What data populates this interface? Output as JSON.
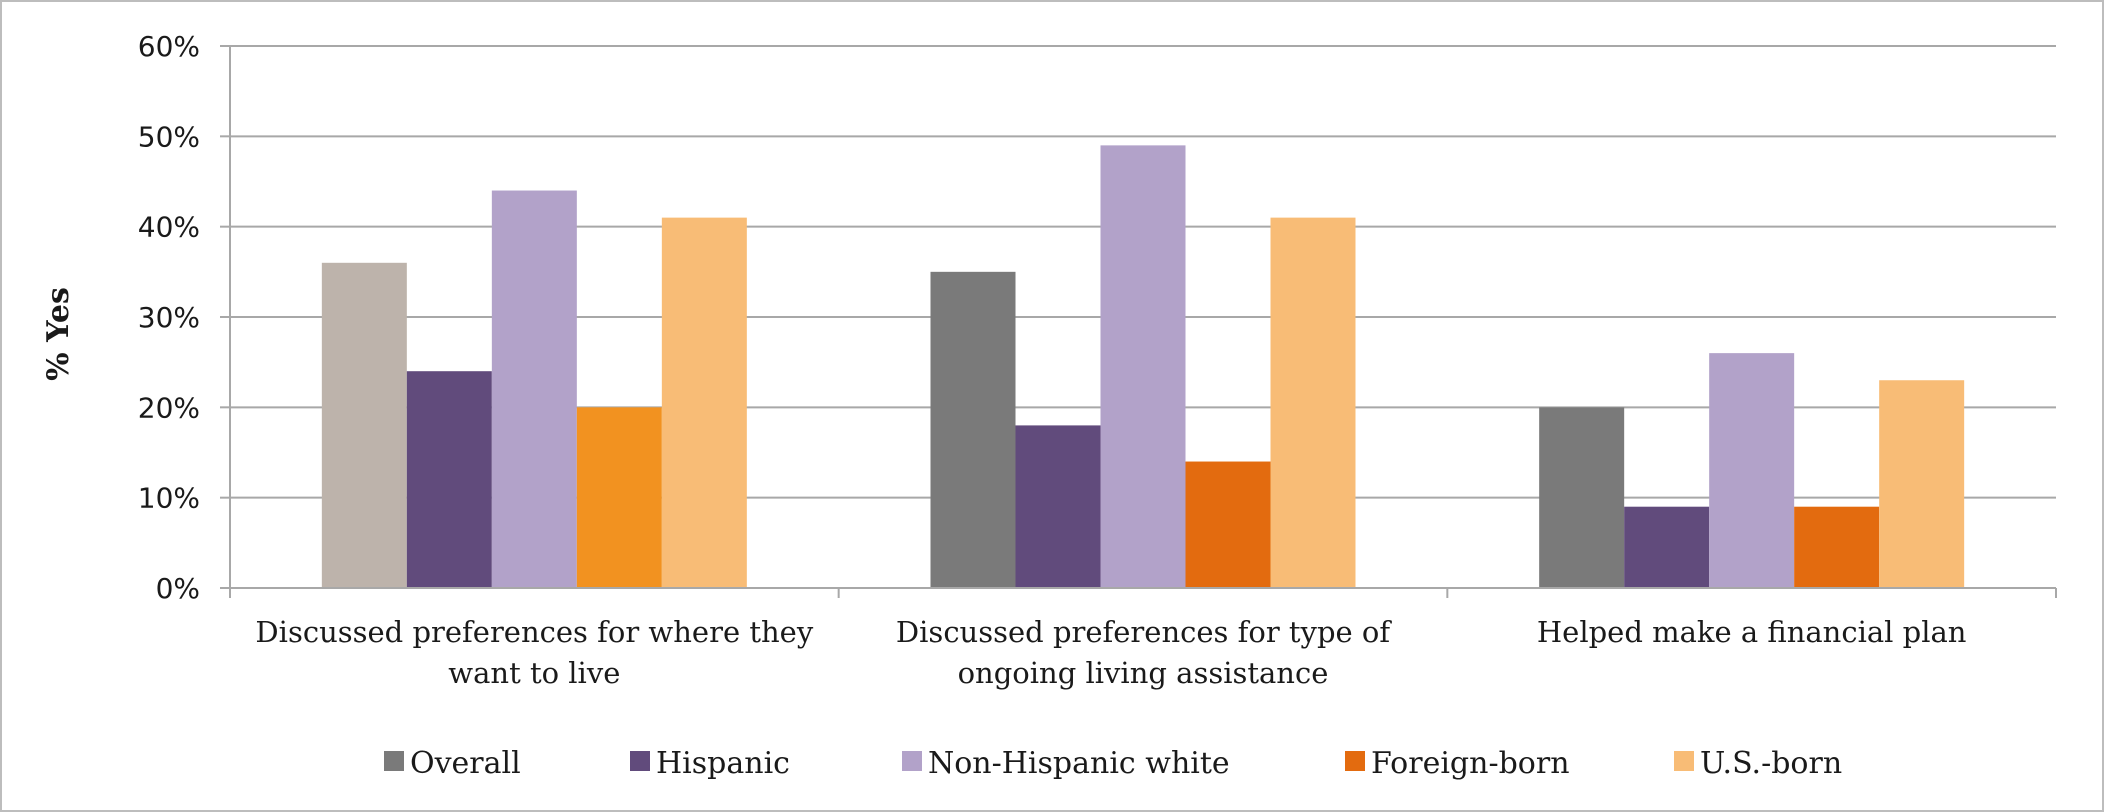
{
  "chart_data": {
    "type": "bar",
    "title": "",
    "xlabel": "",
    "ylabel": "% Yes",
    "ylim": [
      0,
      60
    ],
    "y_ticks": [
      "0%",
      "10%",
      "20%",
      "30%",
      "40%",
      "50%",
      "60%"
    ],
    "y_tick_values": [
      0,
      10,
      20,
      30,
      40,
      50,
      60
    ],
    "grid": true,
    "legend_position": "bottom",
    "categories": [
      [
        "Discussed preferences for where they",
        "want to live"
      ],
      [
        "Discussed preferences for type of",
        "ongoing living assistance"
      ],
      [
        "Helped make a financial plan"
      ]
    ],
    "series": [
      {
        "name": "Overall",
        "color": "#7a7a7a",
        "values": [
          36,
          35,
          20
        ],
        "point_colors": [
          "#bdb3ab",
          "#7a7a7a",
          "#7a7a7a"
        ]
      },
      {
        "name": "Hispanic",
        "color": "#614b7c",
        "values": [
          24,
          18,
          9
        ]
      },
      {
        "name": "Non-Hispanic white",
        "color": "#b2a2c9",
        "values": [
          44,
          49,
          26
        ]
      },
      {
        "name": "Foreign-born",
        "color": "#e36b0f",
        "values": [
          20,
          14,
          9
        ],
        "point_colors": [
          "#f29220",
          "#e36b0f",
          "#e36b0f"
        ]
      },
      {
        "name": "U.S.-born",
        "color": "#f8bc76",
        "values": [
          41,
          41,
          23
        ]
      }
    ]
  }
}
